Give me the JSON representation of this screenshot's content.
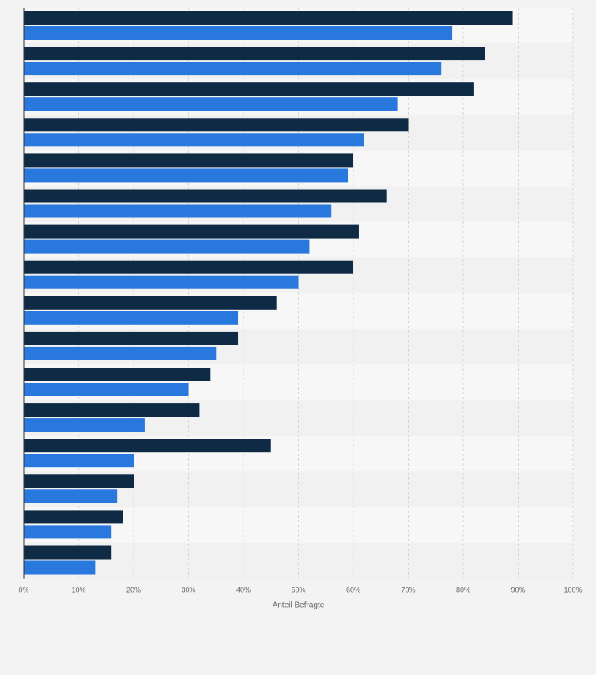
{
  "chart_data": {
    "type": "bar",
    "orientation": "horizontal",
    "categories": [
      "",
      "",
      "",
      "",
      "",
      "",
      "",
      "",
      "",
      "",
      "",
      "",
      "",
      "",
      "",
      ""
    ],
    "series": [
      {
        "values": [
          89,
          84,
          82,
          70,
          60,
          66,
          61,
          60,
          46,
          39,
          34,
          32,
          45,
          20,
          18,
          16
        ]
      },
      {
        "values": [
          78,
          76,
          68,
          62,
          59,
          56,
          52,
          50,
          39,
          35,
          30,
          22,
          20,
          17,
          16,
          13
        ]
      }
    ],
    "xlabel": "Anteil Befragte",
    "ylabel": "",
    "xlim": [
      0,
      100
    ],
    "xticks": [
      "0%",
      "10%",
      "20%",
      "30%",
      "40%",
      "50%",
      "60%",
      "70%",
      "80%",
      "90%",
      "100%"
    ],
    "grid": true,
    "legend": "none"
  },
  "colors": {
    "series": [
      "#0f2a44",
      "#2878dd"
    ],
    "band_light": "#f7f7f7",
    "band_dark": "#f1f1f1",
    "gridline": "#d6d6d6",
    "axis": "#333333",
    "tick_text": "#666666"
  }
}
